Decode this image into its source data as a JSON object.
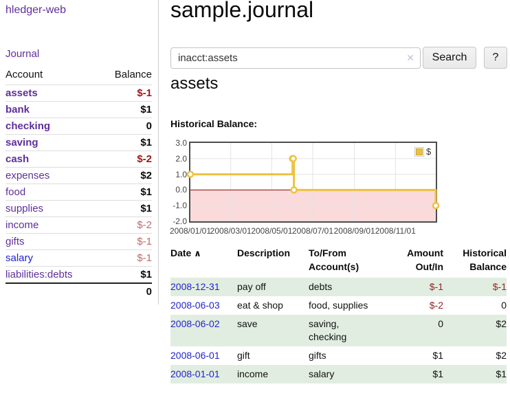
{
  "colors": {
    "purple": "#5e2f9a",
    "blue": "#2323cc",
    "red": "#9d1616",
    "red2": "#932525",
    "rose": "#c06a6a",
    "stripe": "#e1ede1",
    "gold": "#edc240",
    "chart-neg-fill": "#fadada",
    "zero-line": "#8b0000",
    "grid": "#e3e3e3"
  },
  "app": {
    "brand": "hledger-web"
  },
  "sidebar": {
    "nav_journal": "Journal",
    "accounts_header": {
      "account": "Account",
      "balance": "Balance"
    },
    "accounts": [
      {
        "name": "assets",
        "indent": 0,
        "bold": true,
        "link": "purple",
        "balance": "$-1",
        "bal_style": "neg"
      },
      {
        "name": "bank",
        "indent": 1,
        "bold": true,
        "link": "purple",
        "balance": "$1",
        "bal_style": "pos"
      },
      {
        "name": "checking",
        "indent": 2,
        "bold": true,
        "link": "purple",
        "balance": "0",
        "bal_style": "pos"
      },
      {
        "name": "saving",
        "indent": 2,
        "bold": true,
        "link": "purple",
        "balance": "$1",
        "bal_style": "pos"
      },
      {
        "name": "cash",
        "indent": 1,
        "bold": true,
        "link": "purple",
        "balance": "$-2",
        "bal_style": "neg"
      },
      {
        "name": "expenses",
        "indent": 0,
        "bold": false,
        "link": "purple",
        "balance": "$2",
        "bal_style": "pos"
      },
      {
        "name": "food",
        "indent": 1,
        "bold": false,
        "link": "purple",
        "balance": "$1",
        "bal_style": "pos"
      },
      {
        "name": "supplies",
        "indent": 1,
        "bold": false,
        "link": "purple",
        "balance": "$1",
        "bal_style": "pos"
      },
      {
        "name": "income",
        "indent": 0,
        "bold": false,
        "link": "purple",
        "balance": "$-2",
        "bal_style": "dim"
      },
      {
        "name": "gifts",
        "indent": 1,
        "bold": false,
        "link": "purple",
        "balance": "$-1",
        "bal_style": "dim"
      },
      {
        "name": "salary",
        "indent": 1,
        "bold": false,
        "link": "blue",
        "balance": "$-1",
        "bal_style": "dim"
      },
      {
        "name": "liabilities:debts",
        "indent": 0,
        "bold": false,
        "link": "purple",
        "balance": "$1",
        "bal_style": "pos"
      }
    ],
    "total": "0"
  },
  "header": {
    "title": "sample.journal"
  },
  "search": {
    "value": "inacct:assets",
    "clear_icon": "✕",
    "button": "Search",
    "help_button": "?"
  },
  "account_page": {
    "heading": "assets",
    "chart_label": "Historical Balance:"
  },
  "chart_data": {
    "type": "line",
    "title": "Historical Balance",
    "steps": true,
    "legend": {
      "label": "$",
      "position": "top-right"
    },
    "series": [
      {
        "name": "$",
        "color": "#edc240",
        "points": [
          {
            "date": "2008-01-01",
            "day": 0,
            "y": 1
          },
          {
            "date": "2008-06-01",
            "day": 152,
            "y": 2
          },
          {
            "date": "2008-06-02",
            "day": 153,
            "y": 2
          },
          {
            "date": "2008-06-03",
            "day": 154,
            "y": 0
          },
          {
            "date": "2008-12-31",
            "day": 365,
            "y": -1
          }
        ]
      }
    ],
    "x_range_days": [
      0,
      365
    ],
    "x_ticks": [
      {
        "label": "2008/01/01",
        "day": 0
      },
      {
        "label": "2008/03/01",
        "day": 60
      },
      {
        "label": "2008/05/01",
        "day": 121
      },
      {
        "label": "2008/07/01",
        "day": 182
      },
      {
        "label": "2008/09/01",
        "day": 244
      },
      {
        "label": "2008/11/01",
        "day": 305
      }
    ],
    "y_ticks": [
      {
        "label": "3.0",
        "value": 3
      },
      {
        "label": "2.0",
        "value": 2
      },
      {
        "label": "1.0",
        "value": 1
      },
      {
        "label": "0.0",
        "value": 0
      },
      {
        "label": "-1.0",
        "value": -1
      },
      {
        "label": "-2.0",
        "value": -2
      }
    ],
    "ylim": [
      -2,
      3
    ],
    "grid": true,
    "negative_region_shaded": true
  },
  "register": {
    "columns": [
      {
        "label": "Date",
        "sort_icon": "∧",
        "align": "left"
      },
      {
        "label": "Description",
        "align": "left"
      },
      {
        "label": "To/From Account(s)",
        "align": "left"
      },
      {
        "label": "Amount Out/In",
        "align": "right"
      },
      {
        "label": "Historical Balance",
        "align": "right"
      }
    ],
    "rows": [
      {
        "date": "2008-12-31",
        "description": "pay off",
        "accounts": "debts",
        "amount": "$-1",
        "amount_neg": true,
        "balance": "$-1",
        "balance_neg": true
      },
      {
        "date": "2008-06-03",
        "description": "eat & shop",
        "accounts": "food, supplies",
        "amount": "$-2",
        "amount_neg": true,
        "balance": "0",
        "balance_neg": false
      },
      {
        "date": "2008-06-02",
        "description": "save",
        "accounts": "saving,\nchecking",
        "amount": "0",
        "amount_neg": false,
        "balance": "$2",
        "balance_neg": false
      },
      {
        "date": "2008-06-01",
        "description": "gift",
        "accounts": "gifts",
        "amount": "$1",
        "amount_neg": false,
        "balance": "$2",
        "balance_neg": false
      },
      {
        "date": "2008-01-01",
        "description": "income",
        "accounts": "salary",
        "amount": "$1",
        "amount_neg": false,
        "balance": "$1",
        "balance_neg": false
      }
    ]
  }
}
